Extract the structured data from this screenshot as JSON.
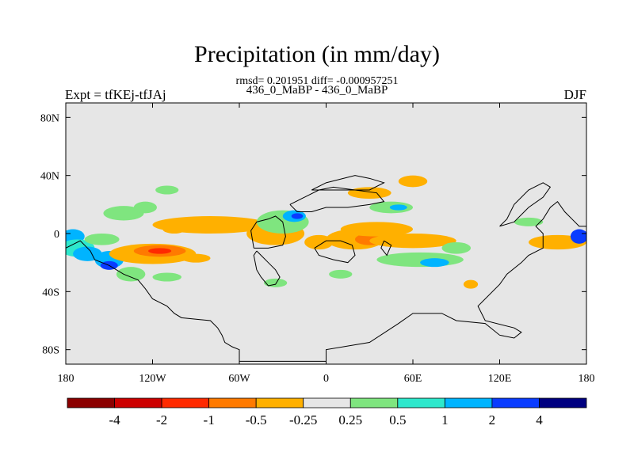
{
  "chart_data": {
    "type": "heatmap",
    "title": "Precipitation (in mm/day)",
    "stats_line": "rmsd= 0.201951 diff= -0.000957251",
    "subtitle": "436_0_MaBP - 436_0_MaBP",
    "left_label": "Expt = tfKEj-tfJAj",
    "right_label": "DJF",
    "x_range": [
      -180,
      180
    ],
    "y_range": [
      -90,
      90
    ],
    "x_ticks": [
      {
        "value": -180,
        "label": "180"
      },
      {
        "value": -120,
        "label": "120W"
      },
      {
        "value": -60,
        "label": "60W"
      },
      {
        "value": 0,
        "label": "0"
      },
      {
        "value": 60,
        "label": "60E"
      },
      {
        "value": 120,
        "label": "120E"
      },
      {
        "value": 180,
        "label": "180"
      }
    ],
    "y_ticks": [
      {
        "value": 80,
        "label": "80N"
      },
      {
        "value": 40,
        "label": "40N"
      },
      {
        "value": 0,
        "label": "0"
      },
      {
        "value": -40,
        "label": "40S"
      },
      {
        "value": -80,
        "label": "80S"
      }
    ],
    "colorbar": {
      "levels": [
        "-4",
        "-2",
        "-1",
        "-0.5",
        "-0.25",
        "0.25",
        "0.5",
        "1",
        "2",
        "4"
      ],
      "colors": [
        "#8b0000",
        "#cc0000",
        "#ff2a00",
        "#ff7a00",
        "#ffb000",
        "#e6e6e6",
        "#7fe57f",
        "#2ee8cc",
        "#00b4ff",
        "#0a3cff",
        "#000080"
      ]
    },
    "background_color": "#e6e6e6",
    "blobs": [
      {
        "cx": -175,
        "cy": -2,
        "rx": 8,
        "ry": 5,
        "cls": 8
      },
      {
        "cx": -172,
        "cy": -10,
        "rx": 12,
        "ry": 6,
        "cls": 7
      },
      {
        "cx": -165,
        "cy": -14,
        "rx": 10,
        "ry": 5,
        "cls": 8
      },
      {
        "cx": -150,
        "cy": -18,
        "rx": 10,
        "ry": 6,
        "cls": 8
      },
      {
        "cx": -150,
        "cy": -22,
        "rx": 6,
        "ry": 3,
        "cls": 9
      },
      {
        "cx": -135,
        "cy": -28,
        "rx": 10,
        "ry": 5,
        "cls": 6
      },
      {
        "cx": -155,
        "cy": -4,
        "rx": 12,
        "ry": 4,
        "cls": 6
      },
      {
        "cx": -140,
        "cy": 14,
        "rx": 14,
        "ry": 5,
        "cls": 6
      },
      {
        "cx": -125,
        "cy": 18,
        "rx": 8,
        "ry": 4,
        "cls": 6
      },
      {
        "cx": -120,
        "cy": -14,
        "rx": 30,
        "ry": 7,
        "cls": 4
      },
      {
        "cx": -115,
        "cy": -12,
        "rx": 18,
        "ry": 4,
        "cls": 3
      },
      {
        "cx": -115,
        "cy": -12,
        "rx": 8,
        "ry": 2,
        "cls": 2
      },
      {
        "cx": -90,
        "cy": -17,
        "rx": 10,
        "ry": 3,
        "cls": 4
      },
      {
        "cx": -80,
        "cy": 6,
        "rx": 40,
        "ry": 6,
        "cls": 4
      },
      {
        "cx": -105,
        "cy": 3,
        "rx": 8,
        "ry": 3,
        "cls": 4
      },
      {
        "cx": -35,
        "cy": 0,
        "rx": 20,
        "ry": 8,
        "cls": 4
      },
      {
        "cx": -30,
        "cy": 8,
        "rx": 18,
        "ry": 8,
        "cls": 6
      },
      {
        "cx": -22,
        "cy": 12,
        "rx": 8,
        "ry": 4,
        "cls": 8
      },
      {
        "cx": -20,
        "cy": 12,
        "rx": 4,
        "ry": 2,
        "cls": 9
      },
      {
        "cx": 20,
        "cy": -4,
        "rx": 20,
        "ry": 7,
        "cls": 4
      },
      {
        "cx": 30,
        "cy": -4,
        "rx": 10,
        "ry": 4,
        "cls": 3
      },
      {
        "cx": -5,
        "cy": -6,
        "rx": 10,
        "ry": 5,
        "cls": 4
      },
      {
        "cx": 30,
        "cy": 28,
        "rx": 15,
        "ry": 4,
        "cls": 4
      },
      {
        "cx": 60,
        "cy": 36,
        "rx": 10,
        "ry": 4,
        "cls": 4
      },
      {
        "cx": 45,
        "cy": 18,
        "rx": 15,
        "ry": 4,
        "cls": 6
      },
      {
        "cx": 50,
        "cy": 18,
        "rx": 6,
        "ry": 2,
        "cls": 8
      },
      {
        "cx": 35,
        "cy": 3,
        "rx": 25,
        "ry": 5,
        "cls": 4
      },
      {
        "cx": 60,
        "cy": -5,
        "rx": 30,
        "ry": 5,
        "cls": 4
      },
      {
        "cx": 65,
        "cy": -18,
        "rx": 30,
        "ry": 5,
        "cls": 6
      },
      {
        "cx": 75,
        "cy": -20,
        "rx": 10,
        "ry": 3,
        "cls": 8
      },
      {
        "cx": 90,
        "cy": -10,
        "rx": 10,
        "ry": 4,
        "cls": 6
      },
      {
        "cx": 140,
        "cy": 8,
        "rx": 10,
        "ry": 3,
        "cls": 6
      },
      {
        "cx": 160,
        "cy": -6,
        "rx": 20,
        "ry": 5,
        "cls": 4
      },
      {
        "cx": 175,
        "cy": -2,
        "rx": 6,
        "ry": 5,
        "cls": 9
      },
      {
        "cx": -110,
        "cy": -30,
        "rx": 10,
        "ry": 3,
        "cls": 6
      },
      {
        "cx": -35,
        "cy": -34,
        "rx": 8,
        "ry": 3,
        "cls": 6
      },
      {
        "cx": 10,
        "cy": -28,
        "rx": 8,
        "ry": 3,
        "cls": 6
      },
      {
        "cx": -110,
        "cy": 30,
        "rx": 8,
        "ry": 3,
        "cls": 6
      },
      {
        "cx": 100,
        "cy": -35,
        "rx": 5,
        "ry": 3,
        "cls": 4
      }
    ],
    "continents": [
      [
        [
          -180,
          -10
        ],
        [
          -170,
          -5
        ],
        [
          -163,
          -12
        ],
        [
          -160,
          -18
        ],
        [
          -150,
          -22
        ],
        [
          -140,
          -28
        ],
        [
          -130,
          -32
        ],
        [
          -125,
          -38
        ],
        [
          -120,
          -45
        ],
        [
          -110,
          -50
        ],
        [
          -105,
          -55
        ],
        [
          -100,
          -58
        ],
        [
          -80,
          -60
        ],
        [
          -75,
          -65
        ],
        [
          -72,
          -70
        ],
        [
          -70,
          -75
        ],
        [
          -65,
          -78
        ],
        [
          -60,
          -80
        ],
        [
          -60,
          -88
        ],
        [
          0,
          -88
        ],
        [
          0,
          -80
        ],
        [
          30,
          -75
        ],
        [
          50,
          -62
        ],
        [
          60,
          -55
        ],
        [
          80,
          -55
        ],
        [
          90,
          -60
        ],
        [
          110,
          -62
        ],
        [
          120,
          -70
        ],
        [
          130,
          -72
        ],
        [
          135,
          -68
        ],
        [
          130,
          -65
        ],
        [
          110,
          -60
        ],
        [
          105,
          -50
        ],
        [
          120,
          -35
        ],
        [
          125,
          -28
        ],
        [
          135,
          -20
        ],
        [
          140,
          -15
        ],
        [
          150,
          -10
        ],
        [
          150,
          0
        ],
        [
          145,
          5
        ],
        [
          150,
          10
        ],
        [
          155,
          18
        ],
        [
          160,
          22
        ],
        [
          165,
          15
        ],
        [
          170,
          10
        ],
        [
          175,
          5
        ],
        [
          180,
          5
        ]
      ],
      [
        [
          -48,
          -12
        ],
        [
          -45,
          -15
        ],
        [
          -40,
          -20
        ],
        [
          -35,
          -25
        ],
        [
          -32,
          -30
        ],
        [
          -35,
          -35
        ],
        [
          -40,
          -36
        ],
        [
          -45,
          -30
        ],
        [
          -48,
          -25
        ],
        [
          -50,
          -15
        ],
        [
          -48,
          -12
        ]
      ],
      [
        [
          -50,
          -10
        ],
        [
          -52,
          2
        ],
        [
          -48,
          8
        ],
        [
          -40,
          10
        ],
        [
          -35,
          12
        ],
        [
          -30,
          8
        ],
        [
          -28,
          -2
        ],
        [
          -30,
          -8
        ],
        [
          -40,
          -10
        ],
        [
          -50,
          -10
        ]
      ],
      [
        [
          -25,
          20
        ],
        [
          -15,
          25
        ],
        [
          -5,
          30
        ],
        [
          5,
          32
        ],
        [
          20,
          30
        ],
        [
          35,
          28
        ],
        [
          40,
          22
        ],
        [
          30,
          20
        ],
        [
          15,
          18
        ],
        [
          0,
          18
        ],
        [
          -10,
          15
        ],
        [
          -20,
          15
        ],
        [
          -25,
          20
        ]
      ],
      [
        [
          -10,
          30
        ],
        [
          0,
          35
        ],
        [
          20,
          40
        ],
        [
          30,
          38
        ],
        [
          40,
          35
        ],
        [
          30,
          30
        ],
        [
          10,
          30
        ],
        [
          -10,
          30
        ]
      ],
      [
        [
          -8,
          -10
        ],
        [
          0,
          -5
        ],
        [
          10,
          -5
        ],
        [
          18,
          -8
        ],
        [
          20,
          -15
        ],
        [
          15,
          -20
        ],
        [
          5,
          -18
        ],
        [
          -5,
          -15
        ],
        [
          -8,
          -10
        ]
      ],
      [
        [
          40,
          -5
        ],
        [
          45,
          -8
        ],
        [
          42,
          -15
        ],
        [
          38,
          -10
        ],
        [
          40,
          -5
        ]
      ],
      [
        [
          120,
          5
        ],
        [
          125,
          10
        ],
        [
          130,
          20
        ],
        [
          140,
          30
        ],
        [
          150,
          35
        ],
        [
          155,
          32
        ],
        [
          150,
          25
        ],
        [
          140,
          18
        ],
        [
          130,
          8
        ],
        [
          120,
          5
        ]
      ]
    ]
  }
}
